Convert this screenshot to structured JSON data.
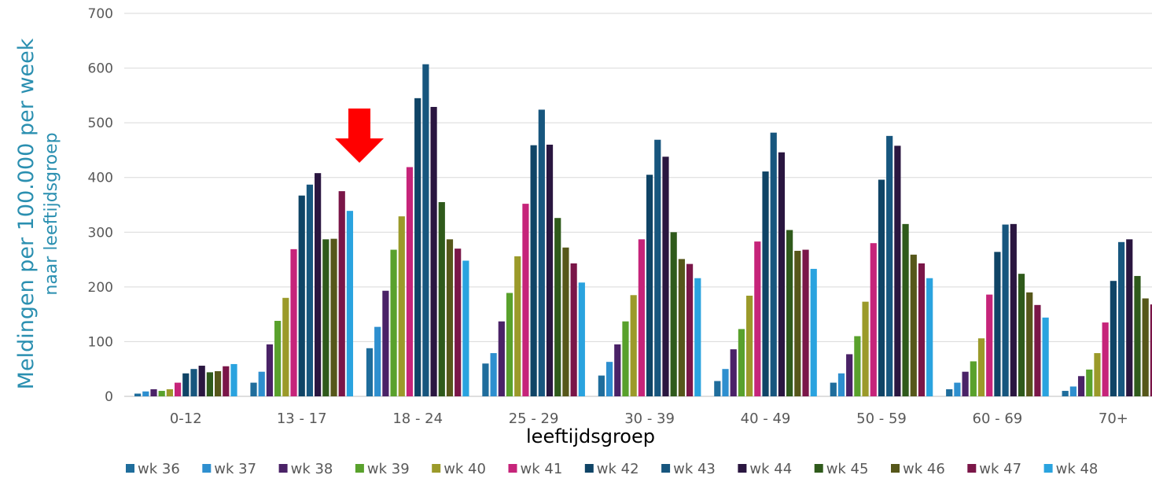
{
  "chart_data": {
    "type": "bar",
    "xlabel": "leeftijdsgroep",
    "ylabel": "Meldingen per 100.000 per week",
    "ylabel_line2": "naar leeftijdsgroep",
    "ylim": [
      0,
      700
    ],
    "yticks": [
      0,
      100,
      200,
      300,
      400,
      500,
      600,
      700
    ],
    "grid": true,
    "legend_position": "bottom",
    "categories": [
      "0-12",
      "13 - 17",
      "18 - 24",
      "25 - 29",
      "30 - 39",
      "40 - 49",
      "50 - 59",
      "60 - 69",
      "70+"
    ],
    "series": [
      {
        "name": "wk 36",
        "color": "#1f6d9c",
        "values": [
          5,
          25,
          88,
          60,
          38,
          28,
          25,
          13,
          10
        ]
      },
      {
        "name": "wk 37",
        "color": "#2e8fcf",
        "values": [
          9,
          45,
          127,
          79,
          63,
          50,
          42,
          25,
          18
        ]
      },
      {
        "name": "wk 38",
        "color": "#4a2267",
        "values": [
          13,
          95,
          193,
          137,
          95,
          86,
          77,
          45,
          37
        ]
      },
      {
        "name": "wk 39",
        "color": "#59a12c",
        "values": [
          10,
          138,
          268,
          189,
          137,
          123,
          110,
          64,
          49
        ]
      },
      {
        "name": "wk 40",
        "color": "#9b9a2a",
        "values": [
          13,
          180,
          329,
          256,
          185,
          184,
          173,
          106,
          79
        ]
      },
      {
        "name": "wk 41",
        "color": "#c6247a",
        "values": [
          25,
          269,
          419,
          352,
          287,
          283,
          280,
          186,
          135
        ]
      },
      {
        "name": "wk 42",
        "color": "#0f4466",
        "values": [
          42,
          367,
          545,
          459,
          405,
          411,
          396,
          264,
          211
        ]
      },
      {
        "name": "wk 43",
        "color": "#17567e",
        "values": [
          50,
          387,
          607,
          524,
          469,
          482,
          476,
          314,
          282
        ]
      },
      {
        "name": "wk 44",
        "color": "#2a1640",
        "values": [
          56,
          408,
          529,
          460,
          438,
          446,
          458,
          315,
          287
        ]
      },
      {
        "name": "wk 45",
        "color": "#2f5a1b",
        "values": [
          44,
          287,
          355,
          326,
          300,
          304,
          315,
          224,
          220
        ]
      },
      {
        "name": "wk 46",
        "color": "#56571a",
        "values": [
          46,
          288,
          287,
          272,
          251,
          266,
          259,
          190,
          179
        ]
      },
      {
        "name": "wk 47",
        "color": "#7a1648",
        "values": [
          55,
          375,
          270,
          243,
          242,
          268,
          243,
          167,
          168
        ]
      },
      {
        "name": "wk 48",
        "color": "#2aa3df",
        "values": [
          59,
          339,
          248,
          208,
          216,
          233,
          216,
          144,
          0
        ]
      }
    ],
    "annotation": {
      "type": "arrow-down",
      "color": "#ff0000",
      "target_category": "13 - 17"
    }
  }
}
